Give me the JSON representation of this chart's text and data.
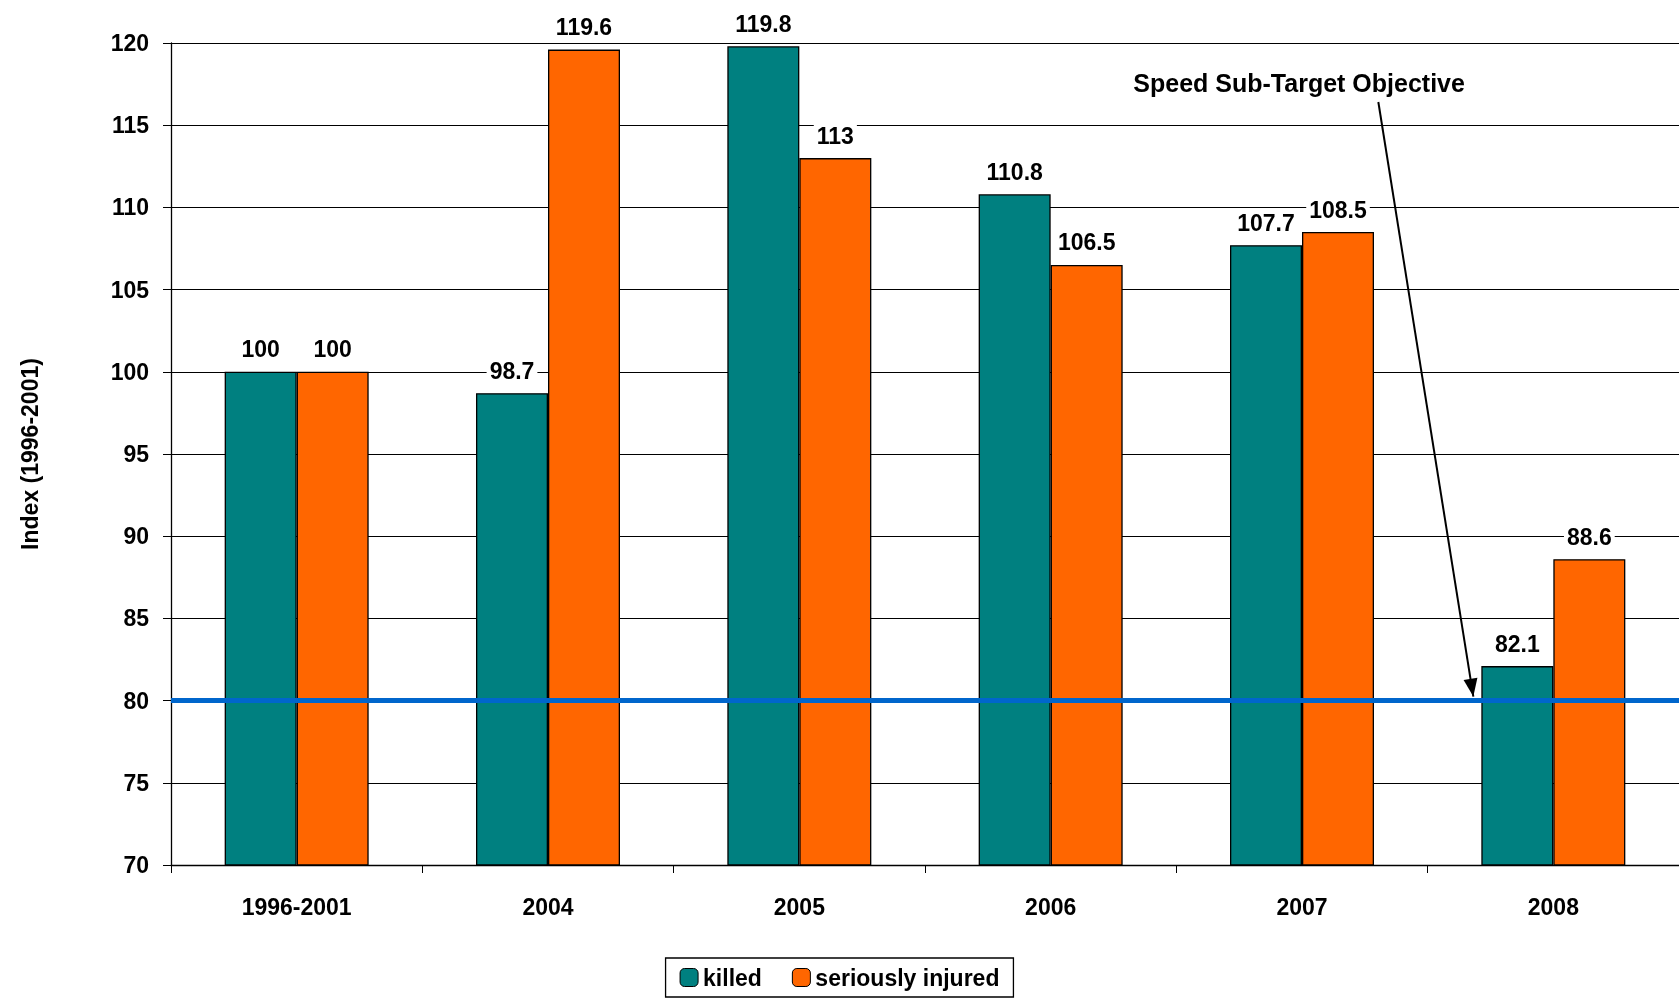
{
  "chart_data": {
    "type": "bar",
    "ylabel": "Index (1996-2001)",
    "categories": [
      "1996-2001",
      "2004",
      "2005",
      "2006",
      "2007",
      "2008"
    ],
    "series": [
      {
        "name": "killed",
        "color": "#008080",
        "values": [
          100,
          98.7,
          119.8,
          110.8,
          107.7,
          82.1
        ]
      },
      {
        "name": "seriously injured",
        "color": "#ff6600",
        "values": [
          100,
          119.6,
          113,
          106.5,
          108.5,
          88.6
        ]
      }
    ],
    "ylim": [
      70,
      120
    ],
    "yticks": [
      70,
      75,
      80,
      85,
      90,
      95,
      100,
      105,
      110,
      115,
      120
    ],
    "grid": "y",
    "legend": "bottom",
    "data_labels": true,
    "ref_lines": [
      {
        "axis": "y",
        "value": 80,
        "label": "Speed Sub-Target Objective",
        "color": "#0066cc"
      }
    ]
  }
}
